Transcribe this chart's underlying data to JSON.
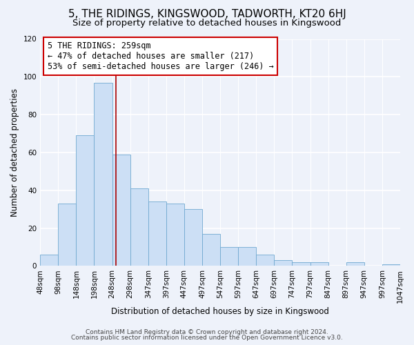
{
  "title": "5, THE RIDINGS, KINGSWOOD, TADWORTH, KT20 6HJ",
  "subtitle": "Size of property relative to detached houses in Kingswood",
  "bar_values": [
    6,
    33,
    69,
    97,
    59,
    41,
    34,
    33,
    30,
    17,
    10,
    10,
    6,
    3,
    2,
    2,
    0,
    2,
    0,
    1
  ],
  "bin_labels": [
    "48sqm",
    "98sqm",
    "148sqm",
    "198sqm",
    "248sqm",
    "298sqm",
    "347sqm",
    "397sqm",
    "447sqm",
    "497sqm",
    "547sqm",
    "597sqm",
    "647sqm",
    "697sqm",
    "747sqm",
    "797sqm",
    "847sqm",
    "897sqm",
    "947sqm",
    "997sqm",
    "1047sqm"
  ],
  "bar_color": "#ccdff5",
  "bar_edge_color": "#6fa8d0",
  "vline_x": 4.22,
  "vline_color": "#aa0000",
  "annotation_text": "5 THE RIDINGS: 259sqm\n← 47% of detached houses are smaller (217)\n53% of semi-detached houses are larger (246) →",
  "annotation_box_edge": "#cc0000",
  "ylabel": "Number of detached properties",
  "xlabel": "Distribution of detached houses by size in Kingswood",
  "ylim": [
    0,
    120
  ],
  "yticks": [
    0,
    20,
    40,
    60,
    80,
    100,
    120
  ],
  "footer_line1": "Contains HM Land Registry data © Crown copyright and database right 2024.",
  "footer_line2": "Contains public sector information licensed under the Open Government Licence v3.0.",
  "background_color": "#eef2fa",
  "grid_color": "#ffffff",
  "title_fontsize": 11,
  "subtitle_fontsize": 9.5,
  "axis_label_fontsize": 8.5,
  "tick_fontsize": 7.5,
  "annotation_fontsize": 8.5,
  "footer_fontsize": 6.5
}
